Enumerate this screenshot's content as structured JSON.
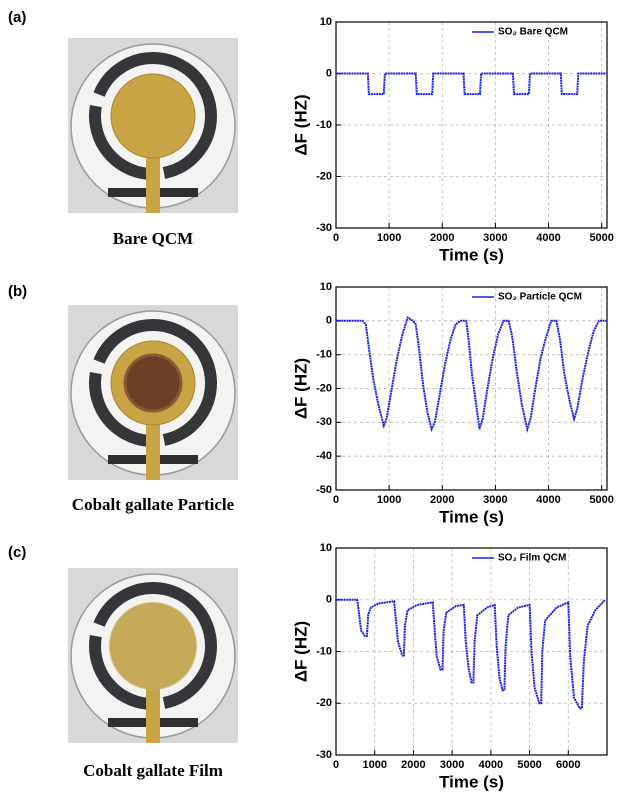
{
  "panels": [
    {
      "label": "(a)",
      "caption": "Bare QCM"
    },
    {
      "label": "(b)",
      "caption": "Cobalt gallate Particle"
    },
    {
      "label": "(c)",
      "caption": "Cobalt gallate Film"
    }
  ],
  "chart_data": [
    {
      "type": "line",
      "x_label": "Time (s)",
      "y_label": "ΔF (HZ)",
      "x": [
        0,
        600,
        620,
        900,
        920,
        1500,
        1520,
        1810,
        1830,
        2400,
        2420,
        2710,
        2730,
        3330,
        3350,
        3630,
        3650,
        4230,
        4250,
        4540,
        4560,
        5100
      ],
      "series": [
        {
          "name": "SO₂ Bare QCM",
          "color": "#1f1fe6",
          "values": [
            0,
            0,
            -4,
            -4,
            0,
            0,
            -4,
            -4,
            0,
            0,
            -4,
            -4,
            0,
            0,
            -4,
            -4,
            0,
            0,
            -4,
            -4,
            0,
            0
          ]
        }
      ],
      "xlim": [
        0,
        5100
      ],
      "xticks": [
        0,
        1000,
        2000,
        3000,
        4000,
        5000
      ],
      "ylim": [
        -30,
        10
      ],
      "yticks": [
        -30,
        -20,
        -10,
        0,
        10
      ],
      "grid": true,
      "legend": "upper right"
    },
    {
      "type": "line",
      "x_label": "Time (s)",
      "y_label": "ΔF (HZ)",
      "x": [
        0,
        500,
        560,
        620,
        700,
        800,
        900,
        950,
        1050,
        1150,
        1250,
        1350,
        1450,
        1500,
        1560,
        1640,
        1720,
        1800,
        1860,
        1950,
        2050,
        2150,
        2250,
        2350,
        2450,
        2500,
        2560,
        2640,
        2700,
        2760,
        2850,
        2950,
        3050,
        3150,
        3250,
        3320,
        3400,
        3500,
        3600,
        3660,
        3750,
        3850,
        3950,
        4050,
        4150,
        4220,
        4300,
        4400,
        4480,
        4540,
        4640,
        4750,
        4850,
        4950,
        5100
      ],
      "series": [
        {
          "name": "SO₂ Particle QCM",
          "color": "#1f1fe6",
          "values": [
            0,
            0,
            -1,
            -8,
            -17,
            -25,
            -31,
            -29,
            -20,
            -11,
            -4,
            1,
            0,
            -1,
            -8,
            -19,
            -27,
            -32,
            -30,
            -22,
            -13,
            -6,
            -1,
            0,
            0,
            -6,
            -16,
            -25,
            -32,
            -29,
            -20,
            -11,
            -4,
            0,
            0,
            -5,
            -15,
            -25,
            -32,
            -29,
            -20,
            -11,
            -5,
            0,
            0,
            -6,
            -16,
            -24,
            -29,
            -26,
            -17,
            -9,
            -3,
            0,
            0
          ]
        }
      ],
      "xlim": [
        0,
        5100
      ],
      "xticks": [
        0,
        1000,
        2000,
        3000,
        4000,
        5000
      ],
      "ylim": [
        -50,
        10
      ],
      "yticks": [
        -50,
        -40,
        -30,
        -20,
        -10,
        0,
        10
      ],
      "grid": true,
      "legend": "upper right"
    },
    {
      "type": "line",
      "x_label": "Time (s)",
      "y_label": "ΔF (HZ)",
      "x": [
        0,
        550,
        600,
        650,
        750,
        800,
        830,
        900,
        1100,
        1500,
        1550,
        1600,
        1700,
        1750,
        1780,
        1850,
        2100,
        2500,
        2550,
        2600,
        2700,
        2750,
        2780,
        2850,
        3100,
        3300,
        3350,
        3420,
        3500,
        3550,
        3580,
        3650,
        3900,
        4100,
        4150,
        4220,
        4300,
        4350,
        4380,
        4450,
        4700,
        5000,
        5050,
        5130,
        5250,
        5300,
        5330,
        5400,
        5700,
        6000,
        6050,
        6150,
        6300,
        6350,
        6400,
        6500,
        6700,
        6950
      ],
      "series": [
        {
          "name": "SO₂ Film QCM",
          "color": "#1f1fe6",
          "values": [
            0,
            0,
            -3,
            -6,
            -7,
            -7,
            -3,
            -1.5,
            -0.7,
            -0.3,
            -4,
            -8,
            -10.5,
            -11,
            -5,
            -2,
            -1,
            -0.5,
            -6,
            -11,
            -13.5,
            -13.5,
            -6,
            -2.5,
            -1.2,
            -1,
            -8,
            -13,
            -16,
            -16,
            -8,
            -3,
            -1.5,
            -1,
            -9,
            -15,
            -17.5,
            -17.5,
            -9,
            -3,
            -1.5,
            -1,
            -10,
            -17,
            -20,
            -20,
            -10,
            -4,
            -1.5,
            -0.5,
            -11,
            -19,
            -21,
            -21,
            -12,
            -5,
            -2,
            0
          ]
        }
      ],
      "xlim": [
        0,
        7000
      ],
      "xticks": [
        0,
        1000,
        2000,
        3000,
        4000,
        5000,
        6000
      ],
      "ylim": [
        -30,
        10
      ],
      "yticks": [
        -30,
        -20,
        -10,
        0,
        10
      ],
      "grid": true,
      "legend": "upper right"
    }
  ]
}
